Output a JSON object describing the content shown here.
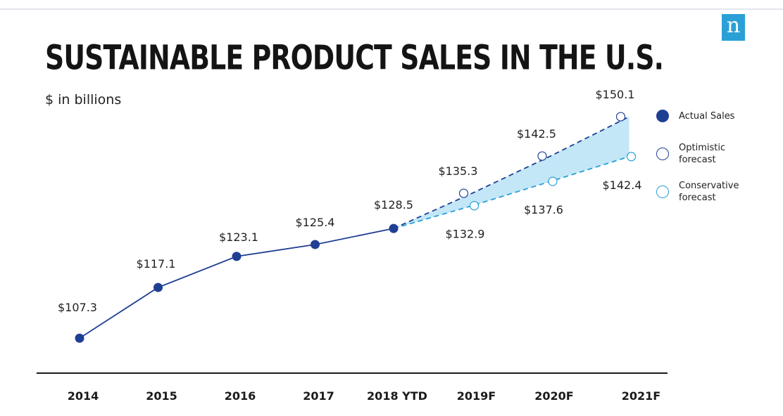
{
  "title": "SUSTAINABLE PRODUCT SALES IN THE U.S.",
  "subtitle": "$ in billions",
  "logo_text": "n",
  "colors": {
    "actual": "#1f3f93",
    "optimistic": "#1f3f93",
    "conservative": "#2aa0d6",
    "forecast_band": "#b9e3f5",
    "axis": "#1a1a1a",
    "logo": "#2aa0d6"
  },
  "legend": [
    {
      "label": "Actual Sales",
      "style": "filled"
    },
    {
      "label": "Optimistic forecast",
      "style": "hollow-dark"
    },
    {
      "label": "Conservative forecast",
      "style": "hollow-light"
    }
  ],
  "chart_data": {
    "type": "line",
    "categories": [
      "2014",
      "2015",
      "2016",
      "2017",
      "2018 YTD",
      "2019F",
      "2020F",
      "2021F"
    ],
    "series": [
      {
        "name": "Actual Sales",
        "values": [
          107.3,
          117.1,
          123.1,
          125.4,
          128.5,
          null,
          null,
          null
        ],
        "labels": [
          "$107.3",
          "$117.1",
          "$123.1",
          "$125.4",
          "$128.5",
          null,
          null,
          null
        ]
      },
      {
        "name": "Optimistic forecast",
        "values": [
          null,
          null,
          null,
          null,
          128.5,
          135.3,
          142.5,
          150.1
        ],
        "labels": [
          null,
          null,
          null,
          null,
          null,
          "$135.3",
          "$142.5",
          "$150.1"
        ]
      },
      {
        "name": "Conservative forecast",
        "values": [
          null,
          null,
          null,
          null,
          128.5,
          132.9,
          137.6,
          142.4
        ],
        "labels": [
          null,
          null,
          null,
          null,
          null,
          "$132.9",
          "$137.6",
          "$142.4"
        ]
      }
    ],
    "title": "SUSTAINABLE PRODUCT SALES IN THE U.S.",
    "ylabel": "$ in billions",
    "xlabel": "",
    "ylim": [
      100,
      155
    ],
    "grid": false,
    "legend_position": "right"
  }
}
